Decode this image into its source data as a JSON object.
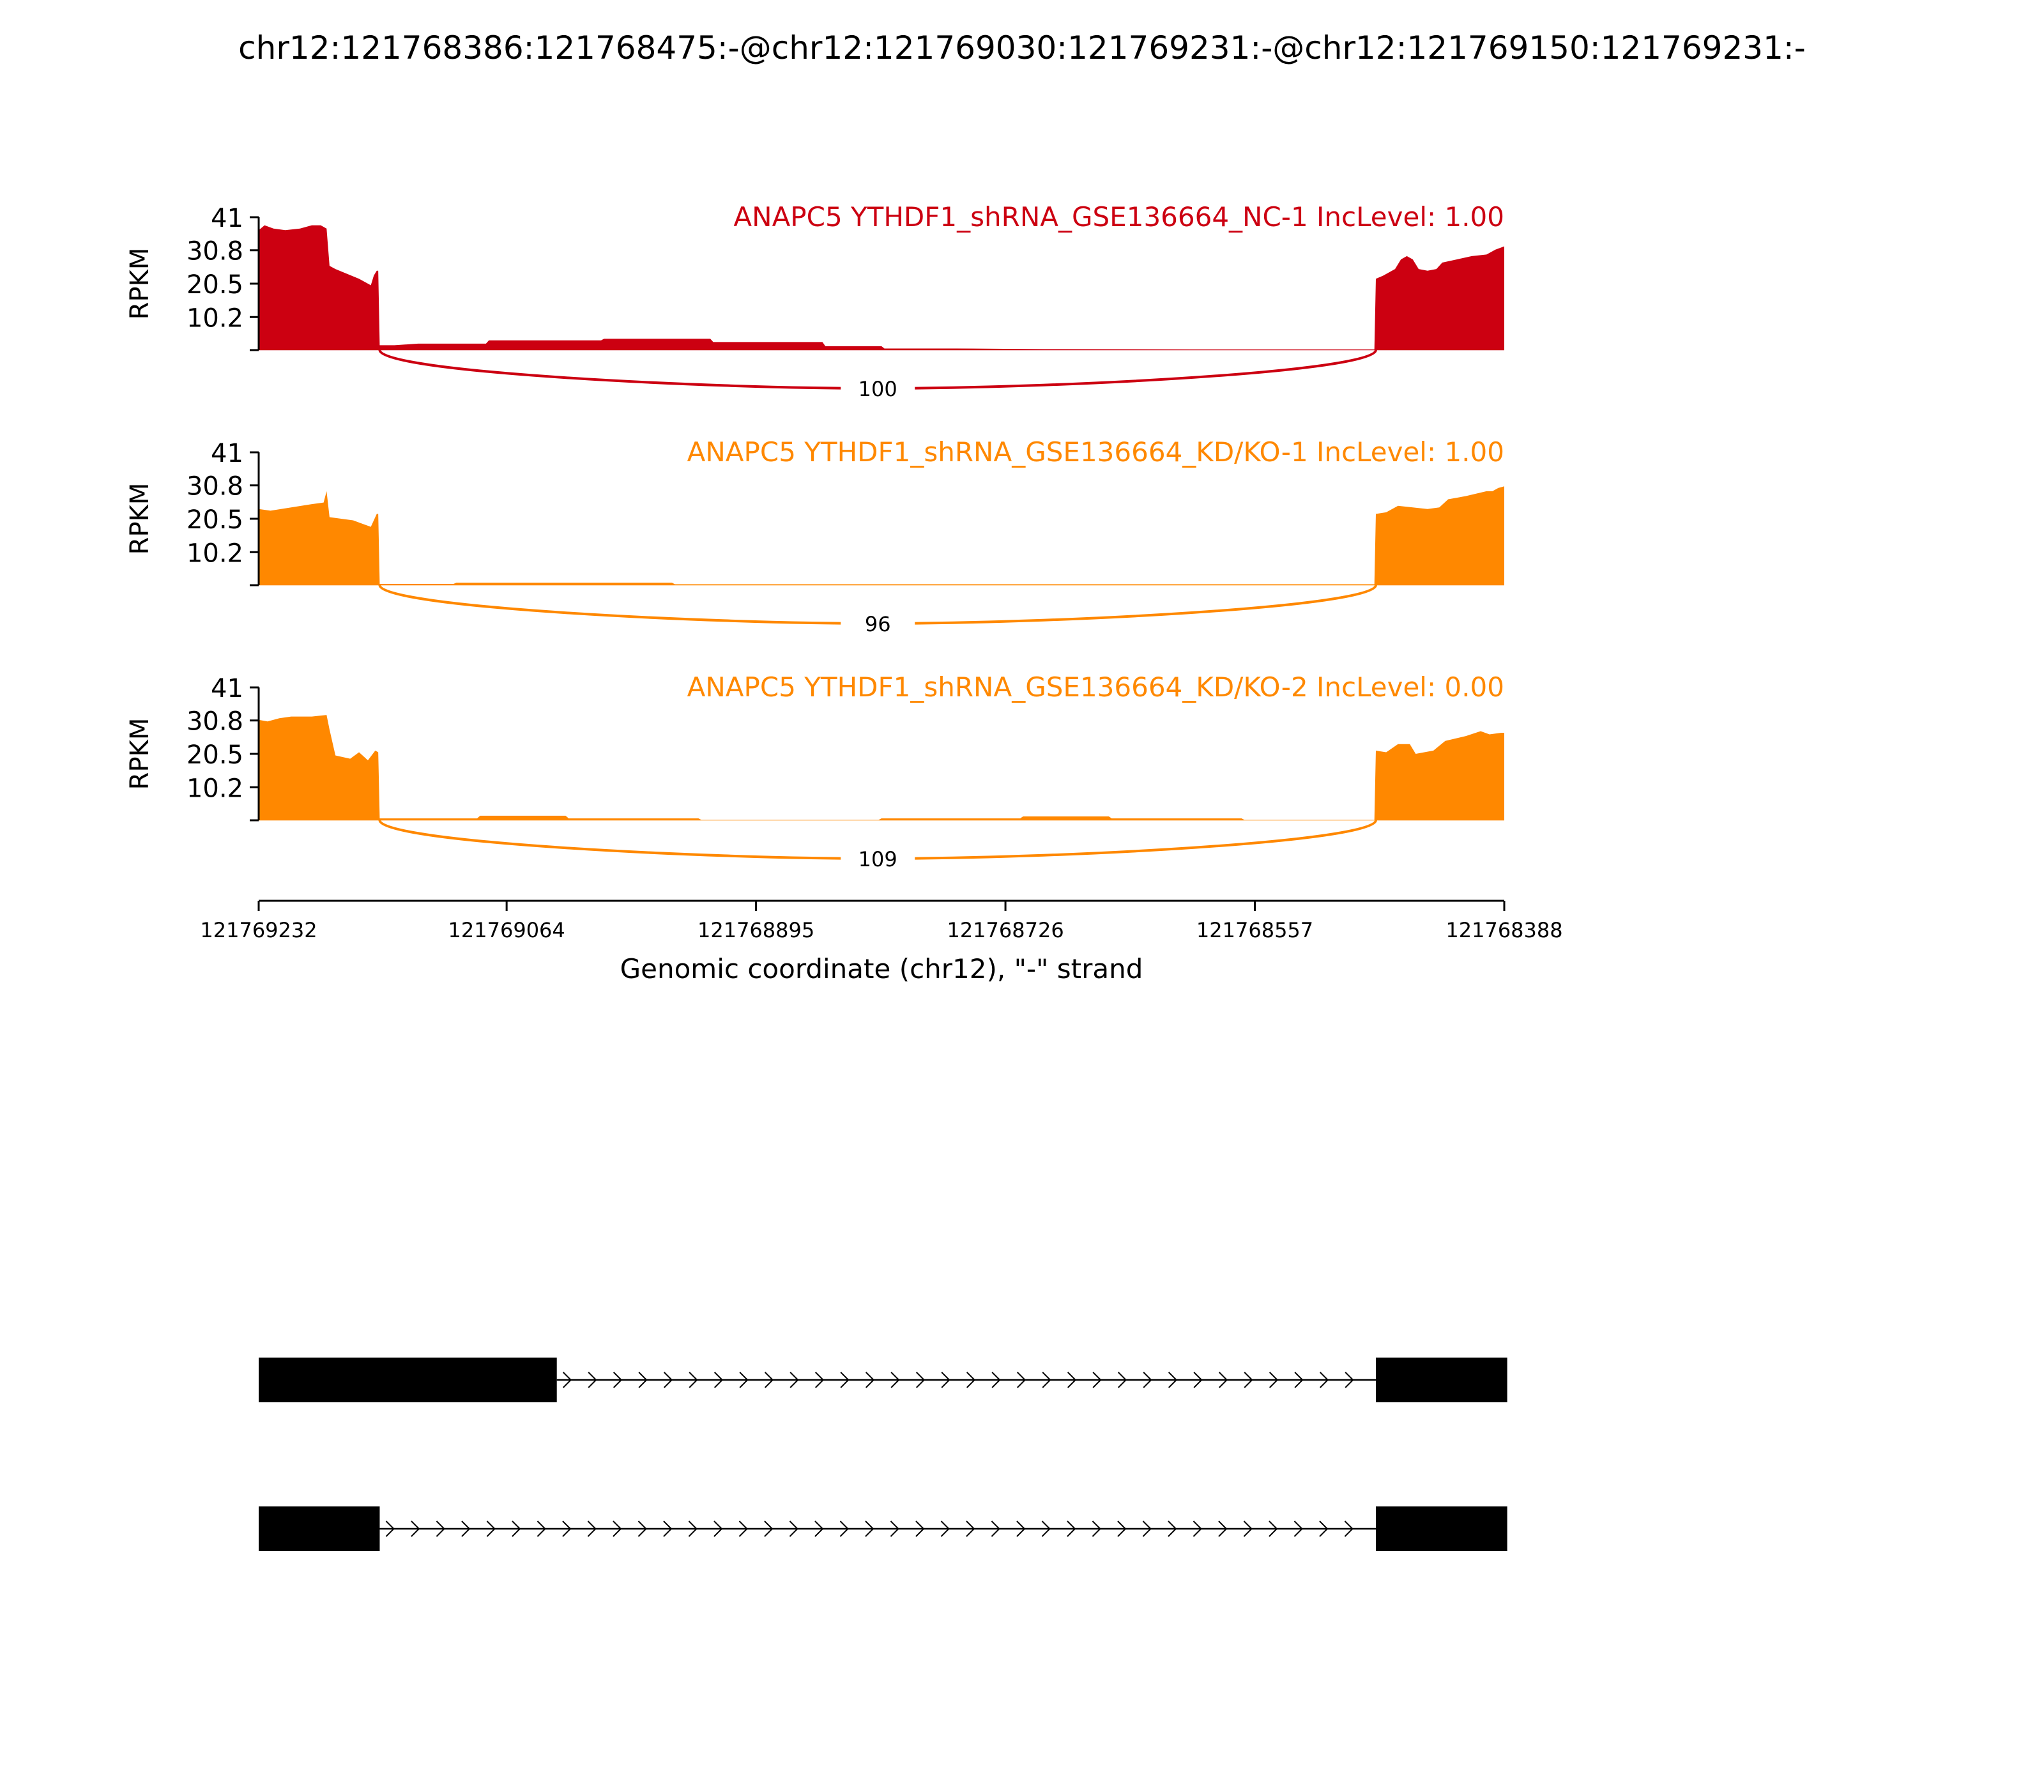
{
  "chart_data": {
    "type": "area",
    "title": "chr12:121768386:121768475:-@chr12:121769030:121769231:-@chr12:121769150:121769231:-",
    "xlabel": "Genomic coordinate (chr12), \"-\" strand",
    "ylabel": "RPKM",
    "xlim": [
      121769232,
      121768388
    ],
    "x_ticks": [
      "121769232",
      "121769064",
      "121768895",
      "121768726",
      "121768557",
      "121768388"
    ],
    "ylim": [
      0,
      41
    ],
    "y_ticks": [
      "41",
      "30.8",
      "20.5",
      "10.2"
    ],
    "grid": false,
    "series": [
      {
        "name": "ANAPC5 YTHDF1_shRNA_GSE136664_NC-1 IncLevel: 1.00",
        "color": "#cc0011",
        "junction_count": "100",
        "junction": [
          121769150,
          121768475
        ],
        "coverage": [
          [
            121769232,
            37
          ],
          [
            121769228,
            38.5
          ],
          [
            121769222,
            37.5
          ],
          [
            121769214,
            37
          ],
          [
            121769204,
            37.5
          ],
          [
            121769196,
            38.5
          ],
          [
            121769190,
            38.5
          ],
          [
            121769186,
            37.5
          ],
          [
            121769184,
            26
          ],
          [
            121769180,
            25
          ],
          [
            121769172,
            23.5
          ],
          [
            121769164,
            22
          ],
          [
            121769156,
            20
          ],
          [
            121769154,
            23
          ],
          [
            121769152,
            24.5
          ],
          [
            121769151,
            24.5
          ],
          [
            121769150,
            1.5
          ],
          [
            121769140,
            1.5
          ],
          [
            121769124,
            2
          ],
          [
            121769100,
            2
          ],
          [
            121769078,
            2
          ],
          [
            121769076,
            3
          ],
          [
            121769000,
            3
          ],
          [
            121768998,
            3.5
          ],
          [
            121768926,
            3.5
          ],
          [
            121768924,
            2.5
          ],
          [
            121768850,
            2.5
          ],
          [
            121768848,
            1.2
          ],
          [
            121768810,
            1.2
          ],
          [
            121768808,
            0.5
          ],
          [
            121768760,
            0.5
          ],
          [
            121768700,
            0.3
          ],
          [
            121768600,
            0.2
          ],
          [
            121768476,
            0.2
          ],
          [
            121768475,
            22
          ],
          [
            121768470,
            23
          ],
          [
            121768462,
            25
          ],
          [
            121768458,
            28
          ],
          [
            121768454,
            29
          ],
          [
            121768450,
            28
          ],
          [
            121768446,
            25
          ],
          [
            121768440,
            24.5
          ],
          [
            121768434,
            25
          ],
          [
            121768430,
            27
          ],
          [
            121768420,
            28
          ],
          [
            121768410,
            29
          ],
          [
            121768400,
            29.5
          ],
          [
            121768394,
            31
          ],
          [
            121768388,
            32
          ]
        ]
      },
      {
        "name": "ANAPC5 YTHDF1_shRNA_GSE136664_KD/KO-1 IncLevel: 1.00",
        "color": "#ff8800",
        "junction_count": "96",
        "junction": [
          121769150,
          121768475
        ],
        "coverage": [
          [
            121769232,
            23.5
          ],
          [
            121769224,
            23
          ],
          [
            121769210,
            24
          ],
          [
            121769196,
            25
          ],
          [
            121769188,
            25.5
          ],
          [
            121769186,
            29
          ],
          [
            121769184,
            21
          ],
          [
            121769176,
            20.5
          ],
          [
            121769168,
            20
          ],
          [
            121769162,
            19
          ],
          [
            121769156,
            18
          ],
          [
            121769152,
            22
          ],
          [
            121769151,
            22
          ],
          [
            121769150,
            0.4
          ],
          [
            121769100,
            0.4
          ],
          [
            121769098,
            0.8
          ],
          [
            121768952,
            0.8
          ],
          [
            121768950,
            0.3
          ],
          [
            121768476,
            0.3
          ],
          [
            121768475,
            22
          ],
          [
            121768468,
            22.5
          ],
          [
            121768460,
            24.5
          ],
          [
            121768450,
            24
          ],
          [
            121768440,
            23.5
          ],
          [
            121768432,
            24
          ],
          [
            121768426,
            26.5
          ],
          [
            121768414,
            27.5
          ],
          [
            121768400,
            29
          ],
          [
            121768396,
            29
          ],
          [
            121768392,
            30
          ],
          [
            121768388,
            30.5
          ]
        ]
      },
      {
        "name": "ANAPC5 YTHDF1_shRNA_GSE136664_KD/KO-2 IncLevel: 0.00",
        "color": "#ff8800",
        "junction_count": "109",
        "junction": [
          121769150,
          121768475
        ],
        "coverage": [
          [
            121769232,
            31
          ],
          [
            121769226,
            30.5
          ],
          [
            121769218,
            31.5
          ],
          [
            121769210,
            32
          ],
          [
            121769196,
            32
          ],
          [
            121769186,
            32.5
          ],
          [
            121769184,
            28
          ],
          [
            121769180,
            20
          ],
          [
            121769170,
            19
          ],
          [
            121769164,
            21
          ],
          [
            121769158,
            18.5
          ],
          [
            121769153,
            21.5
          ],
          [
            121769151,
            21
          ],
          [
            121769150,
            0.6
          ],
          [
            121769140,
            0.6
          ],
          [
            121769084,
            0.6
          ],
          [
            121769082,
            1.4
          ],
          [
            121769024,
            1.4
          ],
          [
            121769022,
            0.6
          ],
          [
            121768934,
            0.6
          ],
          [
            121768932,
            0.1
          ],
          [
            121768812,
            0.1
          ],
          [
            121768810,
            0.6
          ],
          [
            121768716,
            0.6
          ],
          [
            121768714,
            1.2
          ],
          [
            121768656,
            1.2
          ],
          [
            121768654,
            0.6
          ],
          [
            121768566,
            0.6
          ],
          [
            121768564,
            0.1
          ],
          [
            121768476,
            0.1
          ],
          [
            121768475,
            21.5
          ],
          [
            121768468,
            21
          ],
          [
            121768460,
            23.5
          ],
          [
            121768452,
            23.5
          ],
          [
            121768448,
            20.5
          ],
          [
            121768436,
            21.5
          ],
          [
            121768428,
            24.5
          ],
          [
            121768414,
            26
          ],
          [
            121768404,
            27.5
          ],
          [
            121768398,
            26.5
          ],
          [
            121768390,
            27
          ],
          [
            121768388,
            27
          ]
        ]
      }
    ],
    "transcripts": [
      {
        "exons": [
          [
            121769232,
            121769030
          ],
          [
            121768475,
            121768386
          ]
        ]
      },
      {
        "exons": [
          [
            121769232,
            121769150
          ],
          [
            121768475,
            121768386
          ]
        ]
      }
    ],
    "colors": {
      "axis": "#000000",
      "transcript": "#000000"
    }
  }
}
